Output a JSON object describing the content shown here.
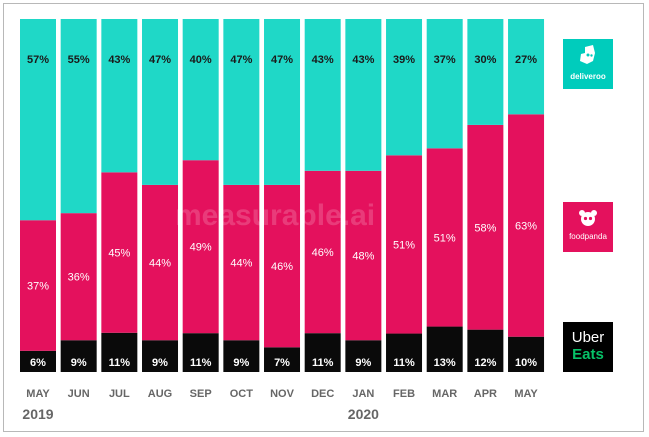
{
  "chart_data": {
    "type": "bar",
    "stacked": true,
    "percent_stacked": true,
    "categories": [
      "MAY",
      "JUN",
      "JUL",
      "AUG",
      "SEP",
      "OCT",
      "NOV",
      "DEC",
      "JAN",
      "FEB",
      "MAR",
      "APR",
      "MAY"
    ],
    "year_labels": [
      {
        "label": "2019",
        "category_index": 0
      },
      {
        "label": "2020",
        "category_index": 8
      }
    ],
    "series": [
      {
        "name": "Uber Eats",
        "color": "#0a0a0a",
        "label_color": "#ffffff",
        "values": [
          6,
          9,
          11,
          9,
          11,
          9,
          7,
          11,
          9,
          11,
          13,
          12,
          10
        ],
        "labels": [
          "6%",
          "9%",
          "11%",
          "9%",
          "11%",
          "9%",
          "7%",
          "11%",
          "9%",
          "11%",
          "13%",
          "12%",
          "10%"
        ]
      },
      {
        "name": "foodpanda",
        "color": "#e4115d",
        "label_color": "#ffffff",
        "values": [
          37,
          36,
          45,
          44,
          49,
          44,
          46,
          46,
          48,
          51,
          51,
          58,
          63
        ],
        "labels": [
          "37%",
          "36%",
          "45%",
          "44%",
          "49%",
          "44%",
          "46%",
          "46%",
          "48%",
          "51%",
          "51%",
          "58%",
          "63%"
        ]
      },
      {
        "name": "deliveroo",
        "color": "#1fd8c7",
        "label_color": "#1a1a1a",
        "values": [
          57,
          55,
          43,
          47,
          40,
          47,
          47,
          43,
          43,
          39,
          37,
          30,
          27
        ],
        "labels": [
          "57%",
          "55%",
          "43%",
          "47%",
          "40%",
          "47%",
          "47%",
          "43%",
          "43%",
          "39%",
          "37%",
          "30%",
          "27%"
        ]
      }
    ],
    "ylim": [
      0,
      100
    ],
    "grid": false,
    "legend": "right",
    "watermark": "measurable.ai"
  },
  "legend_logos": {
    "deliveroo": "deliveroo",
    "foodpanda": "foodpanda",
    "uber_eats": [
      "Uber",
      "Eats"
    ]
  },
  "colors": {
    "deliveroo": "#1fd8c7",
    "foodpanda": "#e4115d",
    "uber_eats": "#0a0a0a",
    "axis_text": "#666666"
  }
}
